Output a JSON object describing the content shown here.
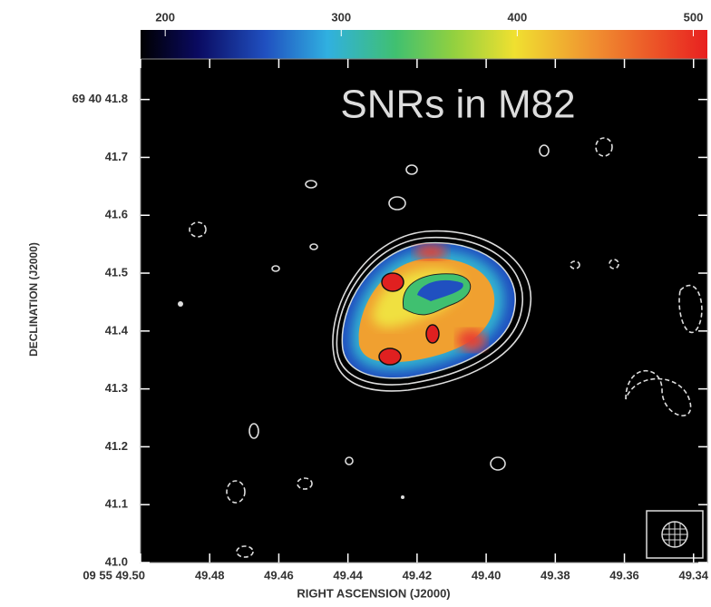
{
  "chart_data": {
    "type": "image",
    "title": "SNRs in M82",
    "xlabel": "RIGHT ASCENSION (J2000)",
    "ylabel": "DECLINATION (J2000)",
    "xlim": [
      49.5,
      49.336
    ],
    "ylim": [
      41.0,
      41.87
    ],
    "xticks": [
      {
        "value": 49.5,
        "label": "09 55 49.50"
      },
      49.48,
      49.46,
      49.44,
      49.42,
      {
        "value": 49.4,
        "label": "49.40"
      },
      49.38,
      49.36,
      49.34
    ],
    "yticks": [
      {
        "value": 41.0,
        "label": "41.0"
      },
      41.1,
      41.2,
      41.3,
      41.4,
      41.5,
      41.6,
      41.7,
      {
        "value": 41.8,
        "label": "69 40 41.8"
      }
    ],
    "colorbar_lim": [
      186,
      508
    ],
    "colorbar_ticks": [
      200,
      300,
      400,
      500
    ]
  }
}
